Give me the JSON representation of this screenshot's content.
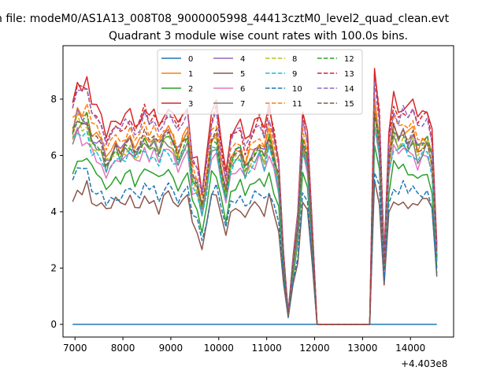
{
  "figure": {
    "suptitle": "n file: modeM0/AS1A13_008T08_9000005998_44413cztM0_level2_quad_clean.evt",
    "offset_label": "+4.403e8"
  },
  "chart_data": {
    "type": "line",
    "title": "Quadrant 3 module wise count rates with 100.0s bins.",
    "xlabel": "",
    "ylabel": "",
    "x_offset": 440300000,
    "xlim": [
      6750,
      14900
    ],
    "ylim": [
      -0.45,
      9.9
    ],
    "x_ticks": [
      7000,
      8000,
      9000,
      10000,
      11000,
      12000,
      13000,
      14000
    ],
    "y_ticks": [
      0,
      2,
      4,
      6,
      8
    ],
    "grid": false,
    "legend_position": "upper-center",
    "legend_columns": 4,
    "series": [
      {
        "name": "0",
        "color": "#1f77b4",
        "dash": "solid"
      },
      {
        "name": "1",
        "color": "#ff7f0e",
        "dash": "solid"
      },
      {
        "name": "2",
        "color": "#2ca02c",
        "dash": "solid"
      },
      {
        "name": "3",
        "color": "#d62728",
        "dash": "solid"
      },
      {
        "name": "4",
        "color": "#9467bd",
        "dash": "solid"
      },
      {
        "name": "5",
        "color": "#8c564b",
        "dash": "solid"
      },
      {
        "name": "6",
        "color": "#e377c2",
        "dash": "solid"
      },
      {
        "name": "7",
        "color": "#7f7f7f",
        "dash": "solid"
      },
      {
        "name": "8",
        "color": "#bcbd22",
        "dash": "dashed"
      },
      {
        "name": "9",
        "color": "#17becf",
        "dash": "dashed"
      },
      {
        "name": "10",
        "color": "#1f77b4",
        "dash": "dashed"
      },
      {
        "name": "11",
        "color": "#ff7f0e",
        "dash": "dashed"
      },
      {
        "name": "12",
        "color": "#2ca02c",
        "dash": "dashed"
      },
      {
        "name": "13",
        "color": "#d62728",
        "dash": "dashed"
      },
      {
        "name": "14",
        "color": "#9467bd",
        "dash": "dashed"
      },
      {
        "name": "15",
        "color": "#8c564b",
        "dash": "dashed"
      }
    ],
    "series_levels": [
      0,
      7.0,
      5.6,
      8.0,
      6.9,
      4.6,
      6.3,
      6.6,
      6.7,
      6.4,
      5.0,
      7.2,
      6.8,
      7.8,
      7.7,
      6.9
    ],
    "series_values_note": "",
    "profile": {
      "x": [
        6950,
        7050,
        7150,
        7250,
        7350,
        7450,
        7550,
        7650,
        7750,
        7850,
        7950,
        8050,
        8150,
        8250,
        8350,
        8450,
        8550,
        8650,
        8750,
        8850,
        8950,
        9050,
        9150,
        9250,
        9350,
        9450,
        9550,
        9650,
        9750,
        9850,
        9950,
        10050,
        10150,
        10250,
        10350,
        10450,
        10550,
        10650,
        10750,
        10850,
        10950,
        11050,
        11150,
        11250,
        11350,
        11450,
        11550,
        11650,
        11750,
        11850,
        11950,
        12050,
        12150,
        12250,
        13150,
        13250,
        13350,
        13450,
        13550,
        13650,
        13750,
        13850,
        13950,
        14050,
        14150,
        14250,
        14350,
        14450,
        14550
      ],
      "factor": [
        1.0,
        1.08,
        1.05,
        1.07,
        0.97,
        0.95,
        0.92,
        0.85,
        0.88,
        0.93,
        0.9,
        0.92,
        0.95,
        0.9,
        0.92,
        0.97,
        0.93,
        0.96,
        0.9,
        0.95,
        0.98,
        0.93,
        0.88,
        0.95,
        0.97,
        0.76,
        0.72,
        0.6,
        0.75,
        0.95,
        0.98,
        0.8,
        0.68,
        0.85,
        0.88,
        0.9,
        0.8,
        0.86,
        0.9,
        0.93,
        0.88,
        0.97,
        0.86,
        0.75,
        0.33,
        0.05,
        0.3,
        0.5,
        0.95,
        0.85,
        0.45,
        0.0,
        0.0,
        0.0,
        0.0,
        1.12,
        0.95,
        0.3,
        0.85,
        1.0,
        0.95,
        0.98,
        0.95,
        0.97,
        0.9,
        0.93,
        0.95,
        0.85,
        0.35
      ]
    }
  }
}
